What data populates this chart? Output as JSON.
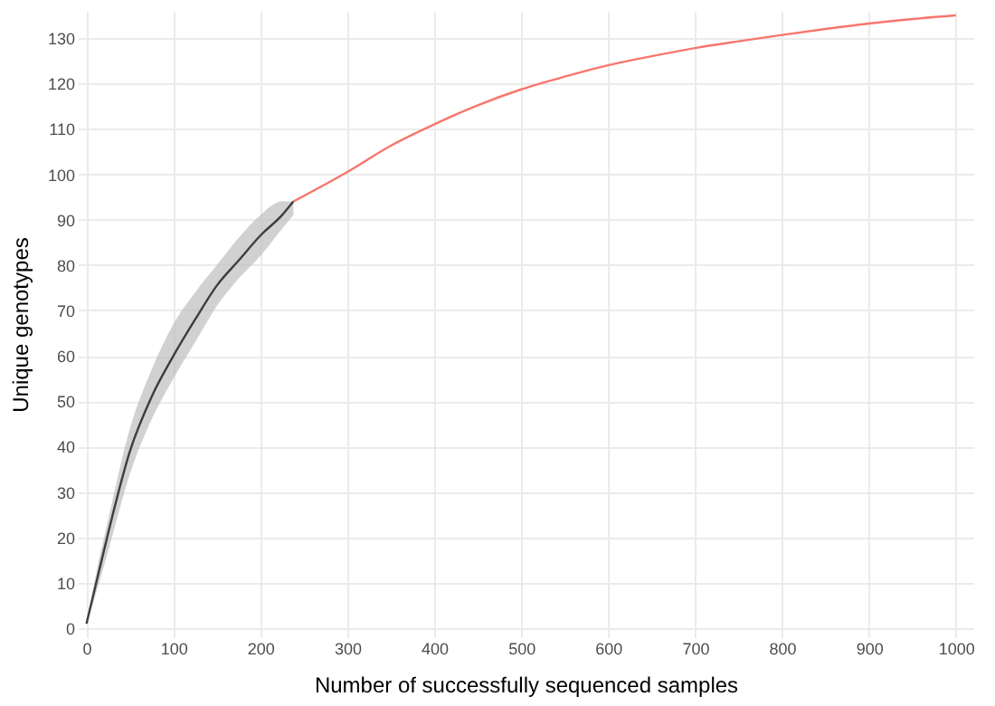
{
  "chart_data": {
    "type": "line",
    "xlabel": "Number of successfully sequenced samples",
    "ylabel": "Unique genotypes",
    "xlim": [
      -10,
      1020
    ],
    "ylim": [
      -2,
      136
    ],
    "xticks": [
      0,
      100,
      200,
      300,
      400,
      500,
      600,
      700,
      800,
      900,
      1000
    ],
    "yticks": [
      0,
      10,
      20,
      30,
      40,
      50,
      60,
      70,
      80,
      90,
      100,
      110,
      120,
      130
    ],
    "grid": true,
    "line_style": "solid",
    "series": [
      {
        "color": "#3d3d3d",
        "x": [
          0,
          10,
          25,
          50,
          75,
          100,
          125,
          150,
          175,
          200,
          225,
          238
        ],
        "values": [
          1,
          9,
          21,
          39,
          51,
          60,
          68,
          75.5,
          81,
          86.5,
          91,
          94
        ],
        "lower": [
          1,
          7,
          17,
          34,
          46,
          55,
          63,
          71,
          77,
          82,
          88,
          91
        ],
        "upper": [
          1,
          11,
          24,
          44,
          57,
          67,
          74,
          80,
          86,
          91,
          94,
          94
        ]
      },
      {
        "color": "#f8766d",
        "x": [
          238,
          300,
          350,
          400,
          450,
          500,
          550,
          600,
          650,
          700,
          750,
          800,
          850,
          900,
          950,
          1000
        ],
        "values": [
          94,
          100.5,
          106.3,
          111,
          115.2,
          118.7,
          121.5,
          124,
          126,
          127.8,
          129.3,
          130.7,
          132,
          133.2,
          134.2,
          135
        ]
      }
    ]
  }
}
